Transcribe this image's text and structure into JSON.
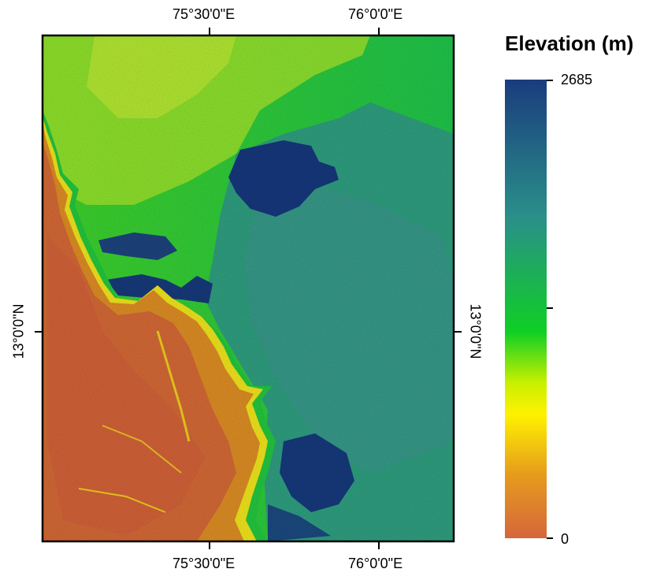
{
  "map": {
    "top_labels": [
      "75°30'0\"E",
      "76°0'0\"E"
    ],
    "bottom_labels": [
      "75°30'0\"E",
      "76°0'0\"E"
    ],
    "left_label": "13°0'0\"N",
    "right_label": "13°0'0\"N"
  },
  "legend": {
    "title": "Elevation (m)",
    "max_label": "2685",
    "min_label": "0",
    "colors": [
      "#1a3c7d",
      "#2a8f8a",
      "#0fcf24",
      "#c6f000",
      "#fff200",
      "#e69c1c",
      "#d5663c"
    ]
  }
}
